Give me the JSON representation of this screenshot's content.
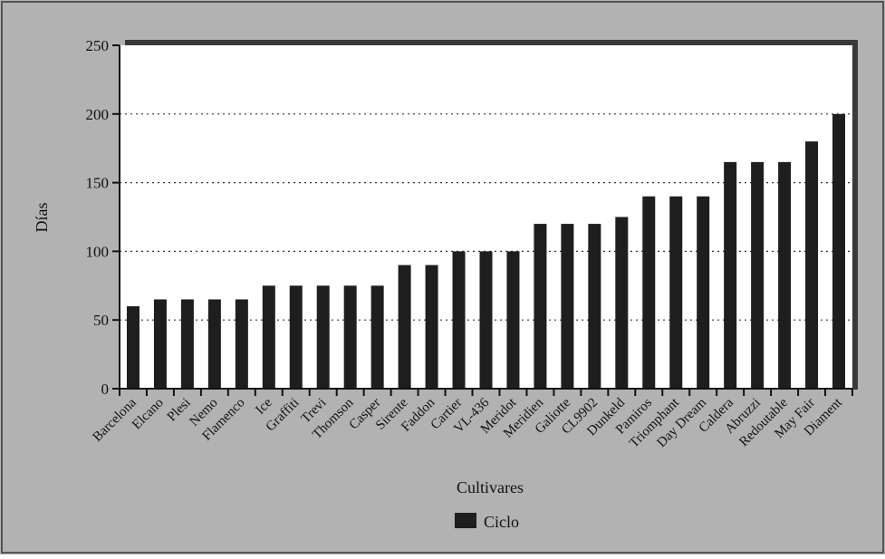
{
  "chart_data": {
    "type": "bar",
    "xlabel": "Cultivares",
    "ylabel": "Días",
    "ylim": [
      0,
      250
    ],
    "yticks": [
      0,
      50,
      100,
      150,
      200,
      250
    ],
    "grid": "horizontal dotted",
    "legend_position": "bottom",
    "categories": [
      "Barcelona",
      "Elcano",
      "Plesi",
      "Nemo",
      "Flamenco",
      "Ice",
      "Graffiti",
      "Trevi",
      "Thomson",
      "Casper",
      "Sirente",
      "Faddon",
      "Cartier",
      "VL-436",
      "Meridot",
      "Meridien",
      "Galiotte",
      "CL9902",
      "Dunkeld",
      "Pamiros",
      "Triomphant",
      "Day Dream",
      "Caldera",
      "Abruzzi",
      "Redoutable",
      "May Fair",
      "Diament"
    ],
    "series": [
      {
        "name": "Ciclo",
        "values": [
          60,
          65,
          65,
          65,
          65,
          75,
          75,
          75,
          75,
          75,
          90,
          90,
          100,
          100,
          100,
          120,
          120,
          120,
          125,
          140,
          140,
          140,
          165,
          165,
          165,
          180,
          200
        ]
      }
    ],
    "colors": {
      "background": "#b2b2b2",
      "plot": "#ffffff",
      "bar": "#1e1e1e",
      "plot_shadow": "#3a3a3a"
    }
  }
}
